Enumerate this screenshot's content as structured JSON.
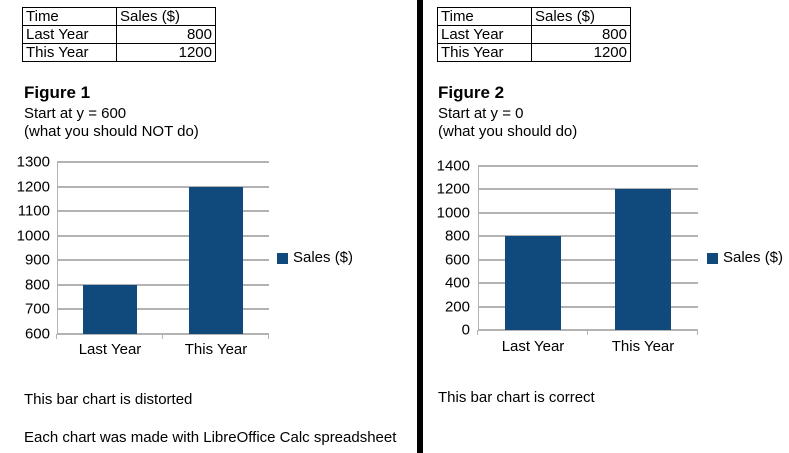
{
  "colors": {
    "bar": "#10497c",
    "grid": "#b3b3b3",
    "divider": "#000000"
  },
  "left_panel": {
    "table": {
      "col_headers": [
        "Time",
        "Sales ($)"
      ],
      "rows": [
        [
          "Last Year",
          "800"
        ],
        [
          "This Year",
          "1200"
        ]
      ]
    },
    "figure_label": "Figure 1",
    "subtitle_line1": "Start at y = 600",
    "subtitle_line2": "(what you should NOT do)",
    "caption": "This bar chart is distorted",
    "footnote": "Each chart was made with LibreOffice Calc spreadsheet"
  },
  "right_panel": {
    "table": {
      "col_headers": [
        "Time",
        "Sales ($)"
      ],
      "rows": [
        [
          "Last Year",
          "800"
        ],
        [
          "This Year",
          "1200"
        ]
      ]
    },
    "figure_label": "Figure 2",
    "subtitle_line1": "Start at y = 0",
    "subtitle_line2": "(what you should do)",
    "caption": "This bar chart is correct"
  },
  "chart_data": [
    {
      "type": "bar",
      "figure": "Figure 1",
      "title": "",
      "xlabel": "",
      "ylabel": "",
      "categories": [
        "Last Year",
        "This Year"
      ],
      "series": [
        {
          "name": "Sales ($)",
          "values": [
            800,
            1200
          ]
        }
      ],
      "legend": "Sales ($)",
      "legend_position": "right",
      "ylim": [
        600,
        1300
      ],
      "yticks": [
        600,
        700,
        800,
        900,
        1000,
        1100,
        1200,
        1300
      ],
      "grid": true
    },
    {
      "type": "bar",
      "figure": "Figure 2",
      "title": "",
      "xlabel": "",
      "ylabel": "",
      "categories": [
        "Last Year",
        "This Year"
      ],
      "series": [
        {
          "name": "Sales ($)",
          "values": [
            800,
            1200
          ]
        }
      ],
      "legend": "Sales ($)",
      "legend_position": "right",
      "ylim": [
        0,
        1400
      ],
      "yticks": [
        0,
        200,
        400,
        600,
        800,
        1000,
        1200,
        1400
      ],
      "grid": true
    }
  ]
}
